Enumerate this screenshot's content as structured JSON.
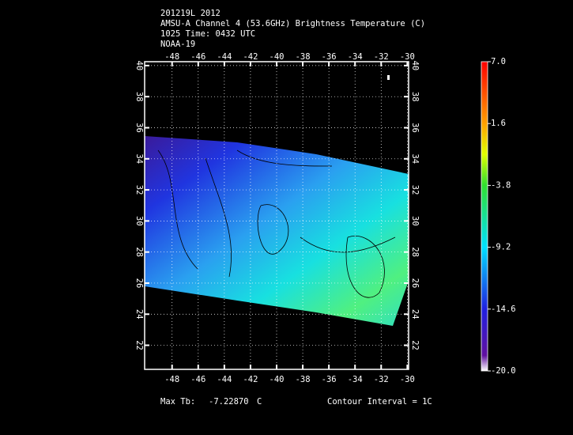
{
  "header": {
    "lines": [
      "201219L 2012",
      "AMSU-A Channel 4 (53.6GHz) Brightness Temperature (C)",
      "1025 Time: 0432 UTC",
      "NOAA-19"
    ]
  },
  "map": {
    "xlim": [
      -50.1,
      -29.9
    ],
    "ylim": [
      20.45,
      40.25
    ],
    "xticks": [
      -48,
      -46,
      -44,
      -42,
      -40,
      -38,
      -36,
      -34,
      -32,
      -30
    ],
    "yticks": [
      22,
      24,
      26,
      28,
      30,
      32,
      34,
      36,
      38,
      40
    ],
    "grid": true
  },
  "colorbar": {
    "range": [
      -20,
      7
    ],
    "ticks": [
      {
        "value": 7,
        "label": "7.0"
      },
      1.6,
      -3.8,
      -9.2,
      -14.6,
      {
        "value": -20,
        "label": "-20.0"
      }
    ]
  },
  "footer": {
    "max_label": "Max Tb:",
    "max_value": {
      "value": -7.2287,
      "label": "-7.22870"
    },
    "max_unit": "C",
    "contour": "Contour Interval = 1C"
  }
}
